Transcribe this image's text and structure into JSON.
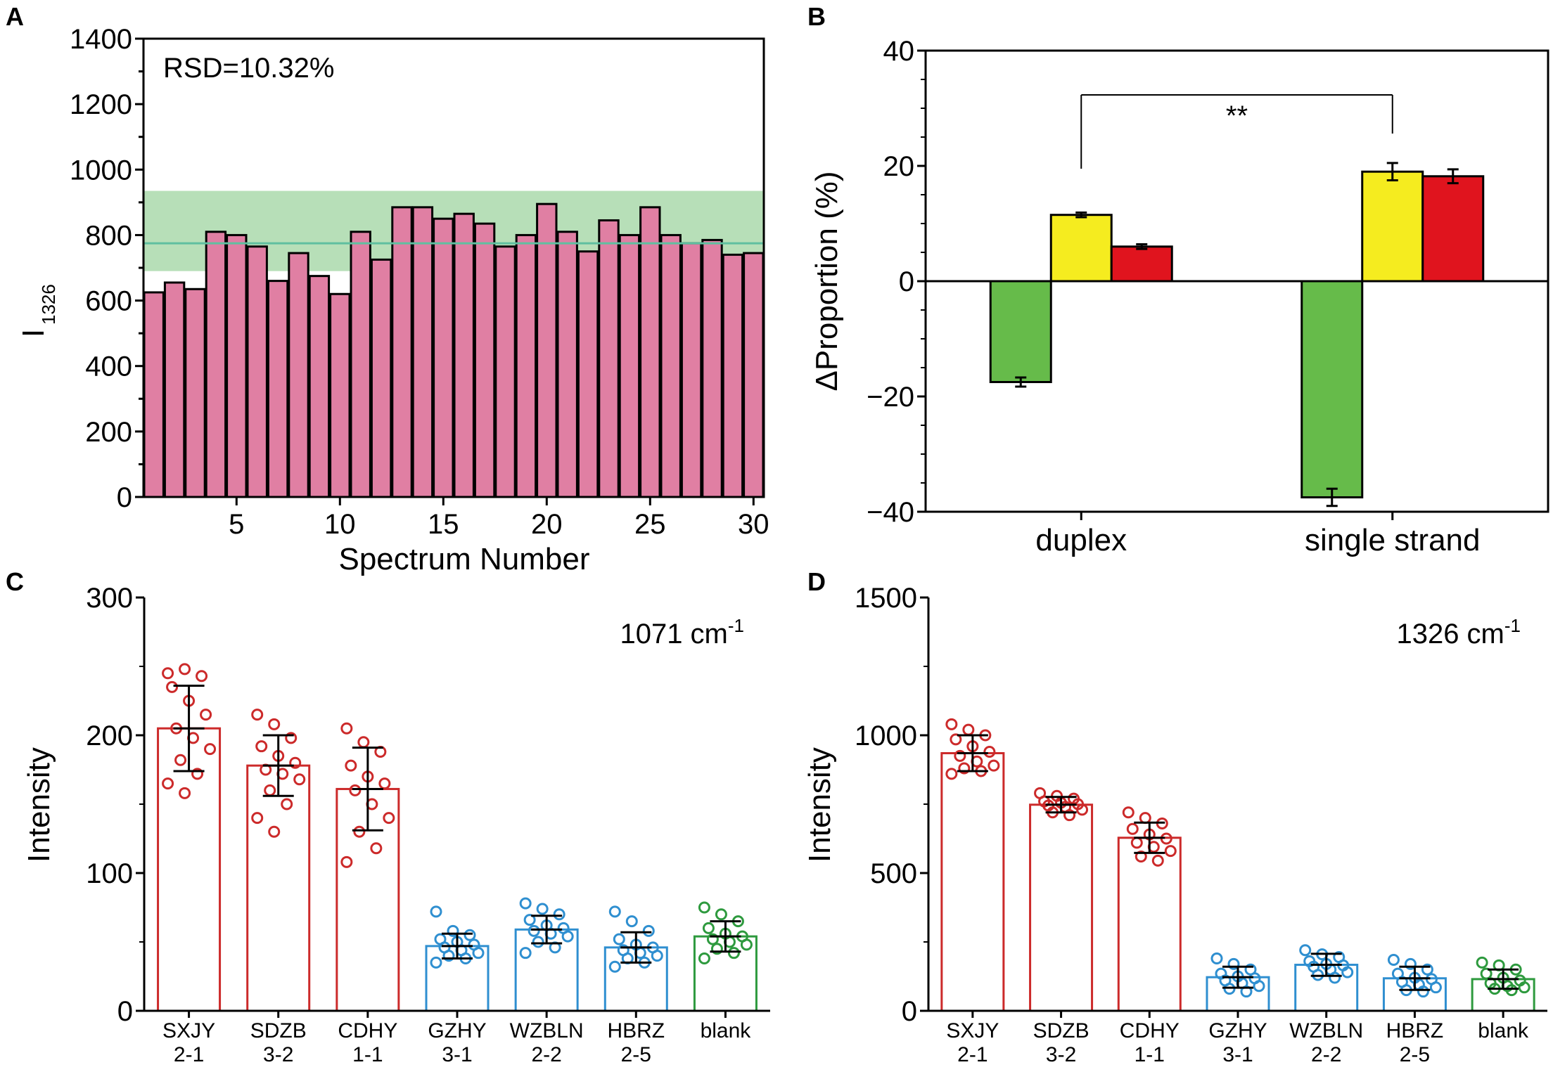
{
  "panels": [
    {
      "letter": "A"
    },
    {
      "letter": "B"
    },
    {
      "letter": "C"
    },
    {
      "letter": "D"
    }
  ],
  "chart_data": [
    {
      "panel": "A",
      "type": "bar",
      "title": "",
      "xlabel": "Spectrum Number",
      "ylabel_main": "I",
      "ylabel_sub": "1326",
      "annotation": "RSD=10.32%",
      "x": [
        1,
        2,
        3,
        4,
        5,
        6,
        7,
        8,
        9,
        10,
        11,
        12,
        13,
        14,
        15,
        16,
        17,
        18,
        19,
        20,
        21,
        22,
        23,
        24,
        25,
        26,
        27,
        28,
        29,
        30
      ],
      "values": [
        625,
        655,
        635,
        810,
        800,
        765,
        660,
        745,
        675,
        620,
        810,
        725,
        885,
        885,
        850,
        865,
        835,
        765,
        800,
        895,
        810,
        750,
        845,
        800,
        885,
        800,
        775,
        785,
        740,
        745
      ],
      "mean": 775,
      "band": [
        690,
        935
      ],
      "xticks": [
        5,
        10,
        15,
        20,
        25,
        30
      ],
      "ylim": [
        0,
        1400
      ],
      "yticks": [
        0,
        200,
        400,
        600,
        800,
        1000,
        1200,
        1400
      ],
      "colors": {
        "bar": "#e07fa3",
        "band": "#b7dfb8",
        "mean_line": "#5fbfa0"
      }
    },
    {
      "panel": "B",
      "type": "bar",
      "title": "",
      "xlabel": "",
      "ylabel": "ΔProportion (%)",
      "categories": [
        "duplex",
        "single strand"
      ],
      "series": [
        {
          "name": "green",
          "color": "#66bb4a",
          "values": [
            -17.5,
            -37.5
          ],
          "errors": [
            0.8,
            1.5
          ]
        },
        {
          "name": "yellow",
          "color": "#f5ec1f",
          "values": [
            11.5,
            19.0
          ],
          "errors": [
            0.4,
            1.5
          ]
        },
        {
          "name": "red",
          "color": "#e0141e",
          "values": [
            6.0,
            18.2
          ],
          "errors": [
            0.4,
            1.2
          ]
        }
      ],
      "significance": "**",
      "ylim": [
        -40,
        40
      ],
      "yticks": [
        -40,
        -20,
        0,
        20,
        40
      ],
      "ytick_labels": [
        "−40",
        "−20",
        "0",
        "20",
        "40"
      ]
    },
    {
      "panel": "C",
      "type": "bar",
      "title": "",
      "ylabel": "Intensity",
      "annotation_value": "1071 cm",
      "annotation_sup": "-1",
      "categories": [
        {
          "line1": "SXJY",
          "line2": "2-1",
          "color": "#cc2a2a",
          "mean": 205,
          "sd": 31,
          "points": [
            245,
            248,
            243,
            235,
            225,
            215,
            205,
            198,
            190,
            182,
            172,
            165,
            158
          ]
        },
        {
          "line1": "SDZB",
          "line2": "3-2",
          "color": "#cc2a2a",
          "mean": 178,
          "sd": 22,
          "points": [
            215,
            208,
            198,
            192,
            185,
            180,
            175,
            172,
            168,
            160,
            150,
            140,
            130
          ]
        },
        {
          "line1": "CDHY",
          "line2": "1-1",
          "color": "#cc2a2a",
          "mean": 161,
          "sd": 30,
          "points": [
            205,
            195,
            188,
            178,
            170,
            165,
            160,
            150,
            140,
            130,
            118,
            108
          ]
        },
        {
          "line1": "GZHY",
          "line2": "3-1",
          "color": "#2f8fd0",
          "mean": 47,
          "sd": 9,
          "points": [
            72,
            58,
            55,
            52,
            50,
            48,
            46,
            44,
            42,
            40,
            38,
            35
          ]
        },
        {
          "line1": "WZBLN",
          "line2": "2-2",
          "color": "#2f8fd0",
          "mean": 59,
          "sd": 10,
          "points": [
            78,
            74,
            70,
            66,
            62,
            60,
            58,
            56,
            54,
            50,
            46,
            42
          ]
        },
        {
          "line1": "HBRZ",
          "line2": "2-5",
          "color": "#2f8fd0",
          "mean": 46,
          "sd": 11,
          "points": [
            72,
            65,
            58,
            52,
            48,
            46,
            44,
            42,
            40,
            38,
            35,
            32
          ]
        },
        {
          "line1": "blank",
          "line2": "",
          "color": "#2e9a3e",
          "mean": 54,
          "sd": 11,
          "points": [
            75,
            70,
            65,
            60,
            56,
            54,
            52,
            50,
            48,
            45,
            42,
            38
          ]
        }
      ],
      "ylim": [
        0,
        300
      ],
      "yticks": [
        0,
        100,
        200,
        300
      ]
    },
    {
      "panel": "D",
      "type": "bar",
      "title": "",
      "ylabel": "Intensity",
      "annotation_value": "1326 cm",
      "annotation_sup": "-1",
      "categories": [
        {
          "line1": "SXJY",
          "line2": "2-1",
          "color": "#cc2a2a",
          "mean": 935,
          "sd": 65,
          "points": [
            1040,
            1020,
            1000,
            985,
            960,
            940,
            925,
            905,
            890,
            880,
            870,
            860
          ]
        },
        {
          "line1": "SDZB",
          "line2": "3-2",
          "color": "#cc2a2a",
          "mean": 748,
          "sd": 28,
          "points": [
            790,
            780,
            770,
            760,
            755,
            750,
            745,
            740,
            730,
            720,
            710
          ]
        },
        {
          "line1": "CDHY",
          "line2": "1-1",
          "color": "#cc2a2a",
          "mean": 628,
          "sd": 55,
          "points": [
            720,
            700,
            680,
            660,
            640,
            625,
            610,
            595,
            580,
            560,
            545
          ]
        },
        {
          "line1": "GZHY",
          "line2": "3-1",
          "color": "#2f8fd0",
          "mean": 122,
          "sd": 38,
          "points": [
            190,
            170,
            150,
            135,
            125,
            118,
            110,
            100,
            90,
            80,
            70
          ]
        },
        {
          "line1": "WZBLN",
          "line2": "2-2",
          "color": "#2f8fd0",
          "mean": 167,
          "sd": 40,
          "points": [
            220,
            205,
            195,
            180,
            170,
            165,
            160,
            150,
            140,
            130,
            120
          ]
        },
        {
          "line1": "HBRZ",
          "line2": "2-5",
          "color": "#2f8fd0",
          "mean": 118,
          "sd": 42,
          "points": [
            185,
            170,
            150,
            135,
            120,
            115,
            105,
            95,
            85,
            75,
            70
          ]
        },
        {
          "line1": "blank",
          "line2": "",
          "color": "#2e9a3e",
          "mean": 115,
          "sd": 35,
          "points": [
            175,
            165,
            150,
            135,
            120,
            110,
            100,
            90,
            85,
            80,
            75
          ]
        }
      ],
      "ylim": [
        0,
        1500
      ],
      "yticks": [
        0,
        500,
        1000,
        1500
      ]
    }
  ]
}
